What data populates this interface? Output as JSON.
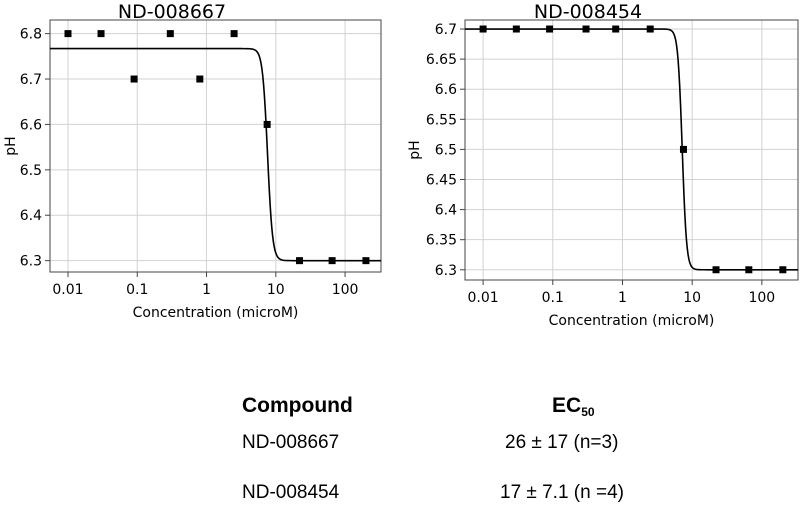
{
  "chart_data": [
    {
      "type": "scatter",
      "title": "ND-008667",
      "xlabel": "Concentration (microM)",
      "ylabel": "pH",
      "xscale": "log",
      "xlim": [
        0.0055,
        330
      ],
      "ylim": [
        6.275,
        6.83
      ],
      "xticks": [
        "0.01",
        "0.1",
        "1",
        "10",
        "100"
      ],
      "xtick_values": [
        0.01,
        0.1,
        1,
        10,
        100
      ],
      "yticks": [
        "6.3",
        "6.4",
        "6.5",
        "6.6",
        "6.7",
        "6.8"
      ],
      "ytick_values": [
        6.3,
        6.4,
        6.5,
        6.6,
        6.7,
        6.8
      ],
      "grid": true,
      "points": {
        "x": [
          0.01,
          0.03,
          0.09,
          0.3,
          0.8,
          2.5,
          7.5,
          22,
          65,
          200
        ],
        "y": [
          6.8,
          6.8,
          6.7,
          6.8,
          6.7,
          6.8,
          6.6,
          6.3,
          6.3,
          6.3
        ]
      },
      "fit": {
        "top": 6.767,
        "bottom": 6.3,
        "ec50": 7.6,
        "hill": 12
      }
    },
    {
      "type": "scatter",
      "title": "ND-008454",
      "xlabel": "Concentration (microM)",
      "ylabel": "pH",
      "xscale": "log",
      "xlim": [
        0.0055,
        330
      ],
      "ylim": [
        6.283,
        6.715
      ],
      "xticks": [
        "0.01",
        "0.1",
        "1",
        "10",
        "100"
      ],
      "xtick_values": [
        0.01,
        0.1,
        1,
        10,
        100
      ],
      "yticks": [
        "6.3",
        "6.35",
        "6.4",
        "6.45",
        "6.5",
        "6.55",
        "6.6",
        "6.65",
        "6.7"
      ],
      "ytick_values": [
        6.3,
        6.35,
        6.4,
        6.45,
        6.5,
        6.55,
        6.6,
        6.65,
        6.7
      ],
      "grid": true,
      "points": {
        "x": [
          0.01,
          0.03,
          0.09,
          0.3,
          0.8,
          2.5,
          7.5,
          22,
          65,
          200
        ],
        "y": [
          6.7,
          6.7,
          6.7,
          6.7,
          6.7,
          6.7,
          6.5,
          6.3,
          6.3,
          6.3
        ]
      },
      "fit": {
        "top": 6.7,
        "bottom": 6.3,
        "ec50": 7.2,
        "hill": 14
      }
    }
  ],
  "table": {
    "header_compound": "Compound",
    "header_ec": "EC",
    "header_ec_sub": "50",
    "rows": [
      {
        "compound": "ND-008667",
        "ec50": "26 ± 17 (n=3)"
      },
      {
        "compound": "ND-008454",
        "ec50": "17 ± 7.1 (n =4)"
      }
    ]
  }
}
